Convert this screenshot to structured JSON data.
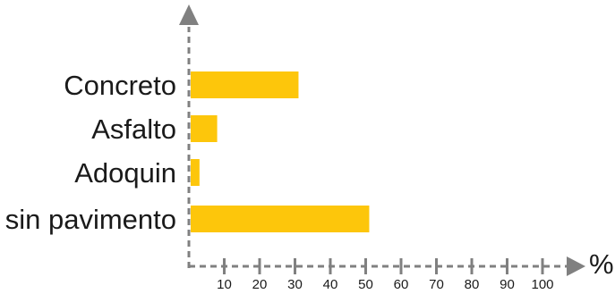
{
  "chart_data": {
    "type": "bar",
    "orientation": "horizontal",
    "categories": [
      "Concreto",
      "Asfalto",
      "Adoquin",
      "sin pavimento"
    ],
    "values": [
      31,
      8,
      3,
      51
    ],
    "xlabel": "%",
    "ylabel": "",
    "xlim": [
      0,
      100
    ],
    "xticks": [
      10,
      20,
      30,
      40,
      50,
      60,
      70,
      80,
      90,
      100
    ],
    "grid": false,
    "legend": "none",
    "bar_color": "#FDC60B",
    "axis_color": "#808080",
    "text_color": "#1a1a1a"
  }
}
